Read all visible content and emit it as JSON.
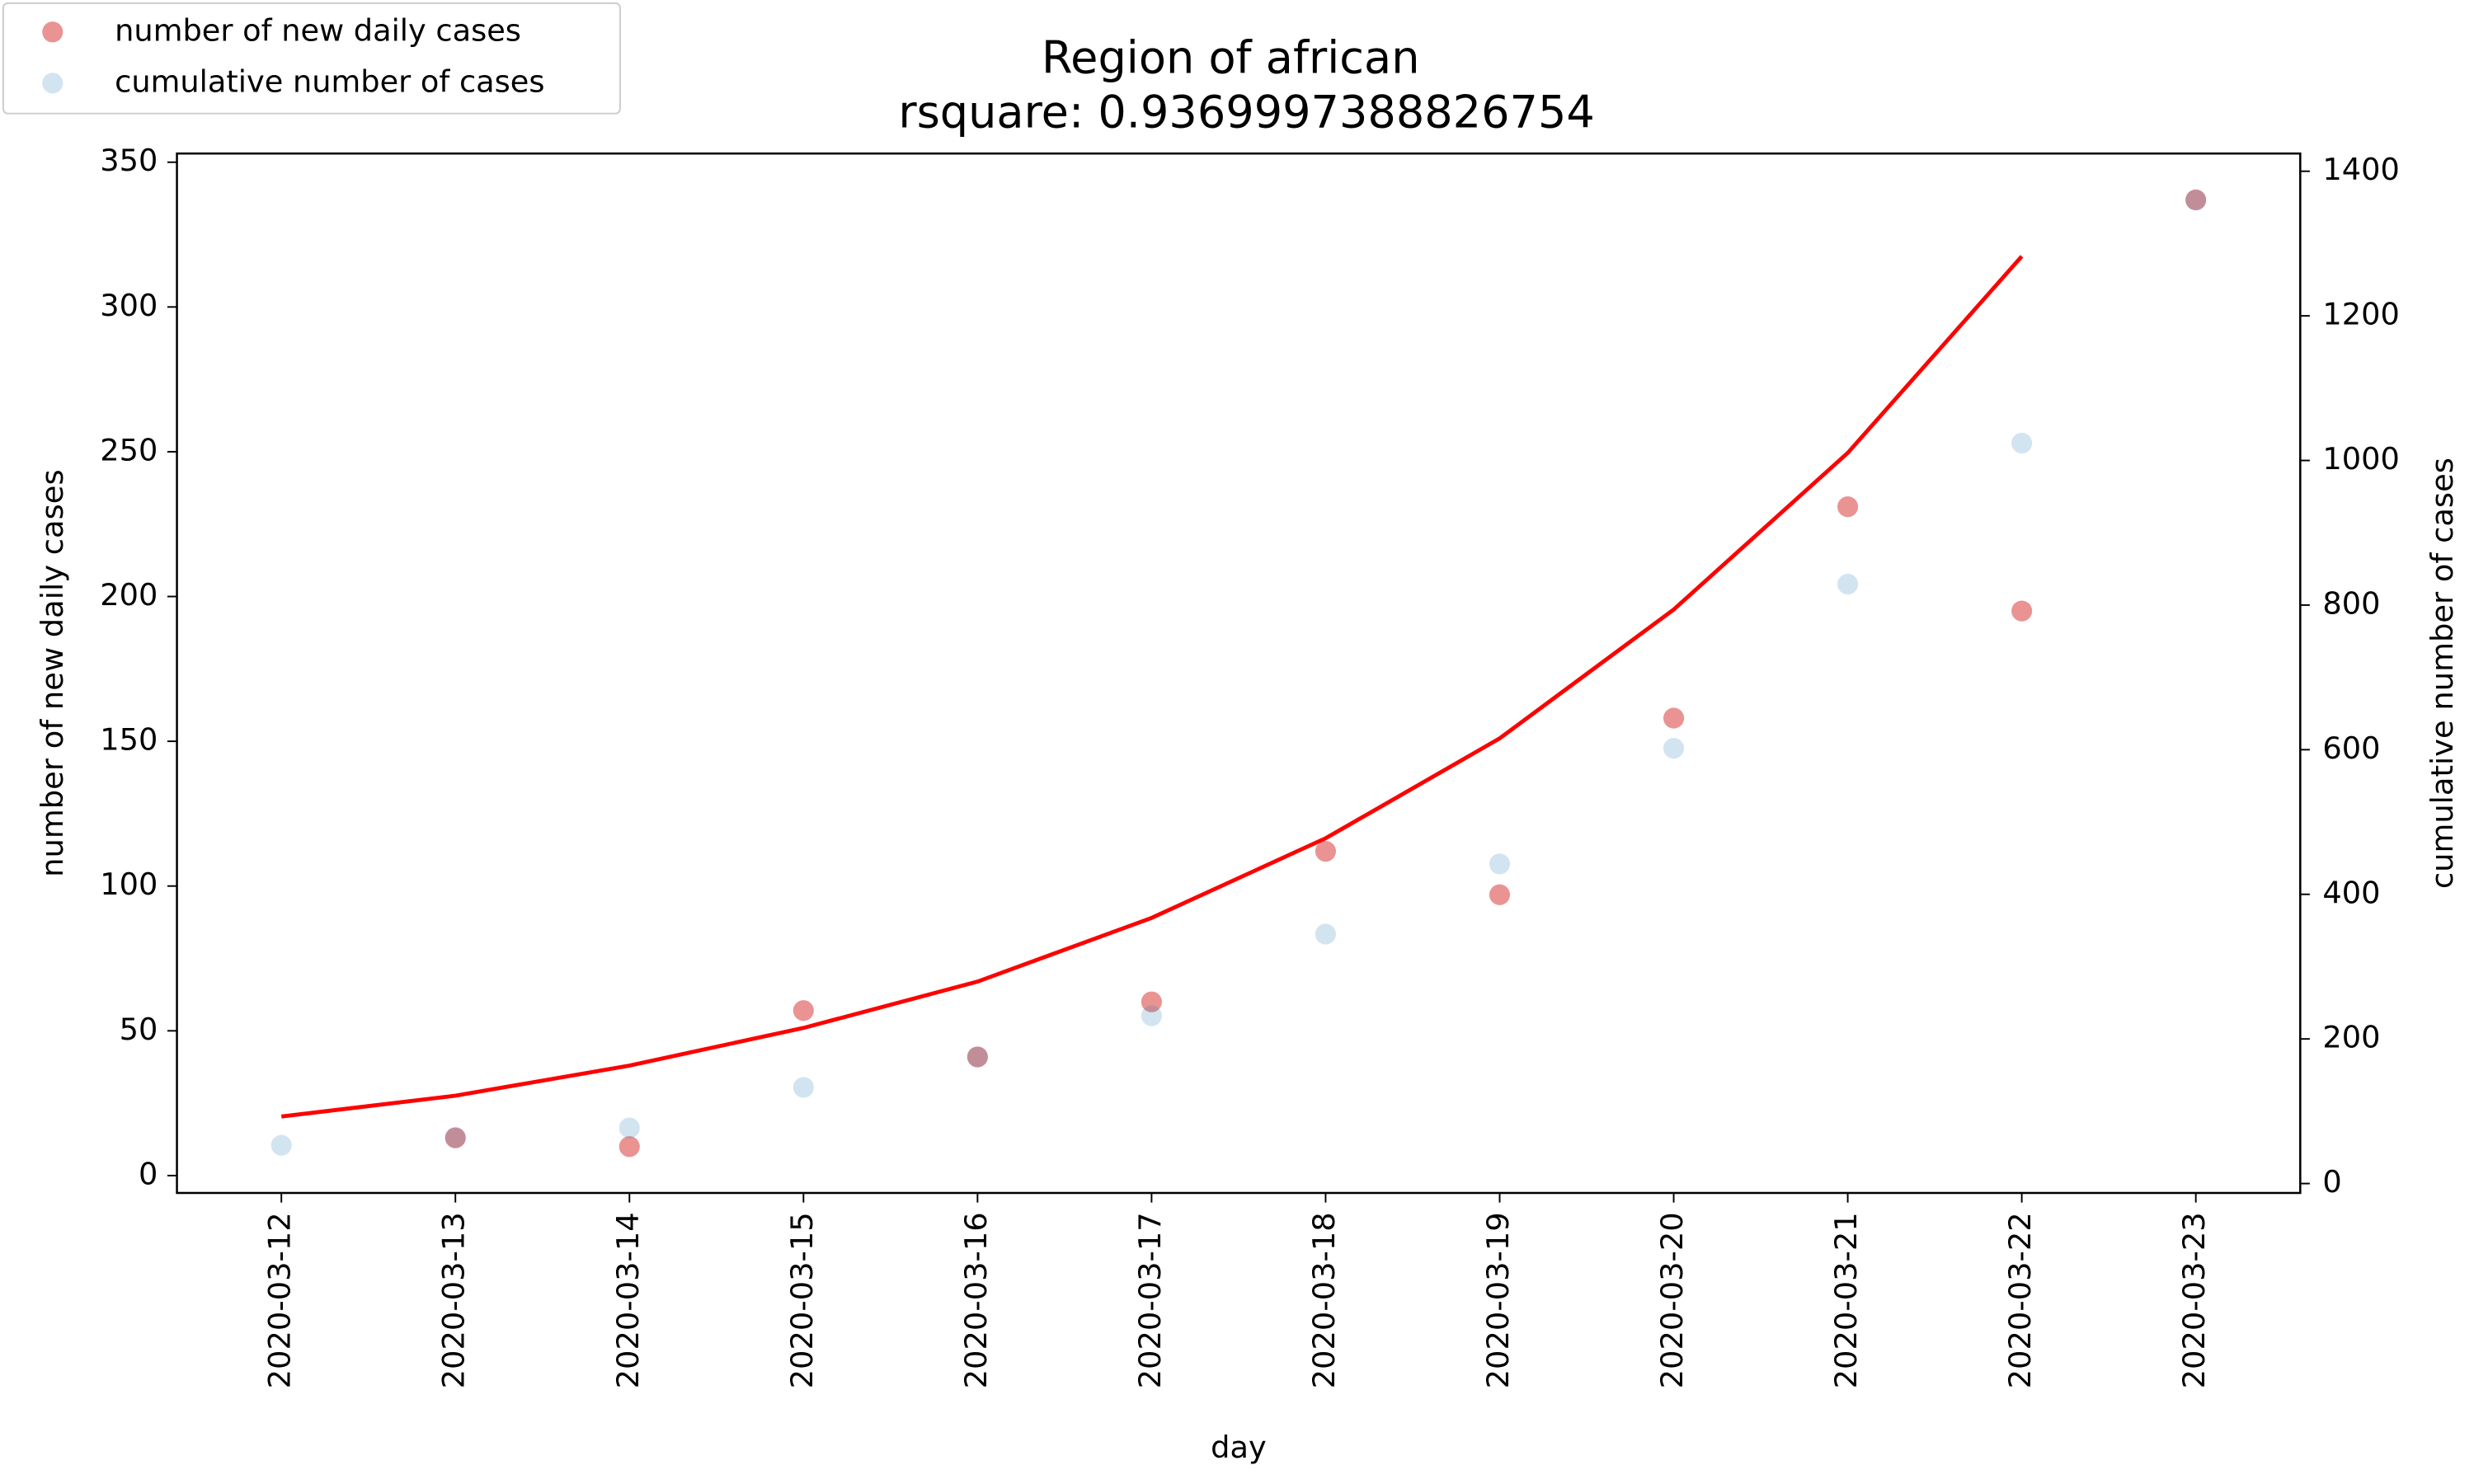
{
  "chart_data": {
    "type": "scatter",
    "title": "Region of african",
    "subtitle": "rsquare: 0.9369997388826754",
    "x_label": "day",
    "y_label": "number of new daily cases",
    "y2_label": "cumulative number of cases",
    "categories": [
      "2020-03-12",
      "2020-03-13",
      "2020-03-14",
      "2020-03-15",
      "2020-03-16",
      "2020-03-17",
      "2020-03-18",
      "2020-03-19",
      "2020-03-20",
      "2020-03-21",
      "2020-03-22",
      "2020-03-23"
    ],
    "series": [
      {
        "name": "number of new daily cases",
        "type": "scatter",
        "color": "#d62728",
        "opacity": 0.5,
        "values": [
          null,
          13,
          10,
          57,
          41,
          60,
          112,
          97,
          158,
          231,
          195,
          337
        ]
      },
      {
        "name": "cumulative number of cases",
        "type": "scatter",
        "color": "#1f77b4",
        "opacity": 0.2,
        "axis": "y2",
        "values": [
          53,
          64,
          77,
          133,
          175,
          232,
          345,
          442,
          602,
          829,
          1024,
          1360
        ]
      },
      {
        "type": "line",
        "color": "#ff0000",
        "values": [
          20.4,
          27.6,
          38,
          51,
          67,
          89,
          116.5,
          151,
          195.5,
          249.6,
          317.5,
          null
        ]
      }
    ],
    "ylim": [
      -6,
      353
    ],
    "yticks": [
      0,
      50,
      100,
      150,
      200,
      250,
      300,
      350
    ],
    "y_color": "#d62728",
    "y2lim": [
      -13,
      1424.5
    ],
    "y2ticks": [
      0,
      200,
      400,
      600,
      800,
      1000,
      1200,
      1400
    ],
    "y2_color": "#1f77b4",
    "legend": "upper left"
  }
}
